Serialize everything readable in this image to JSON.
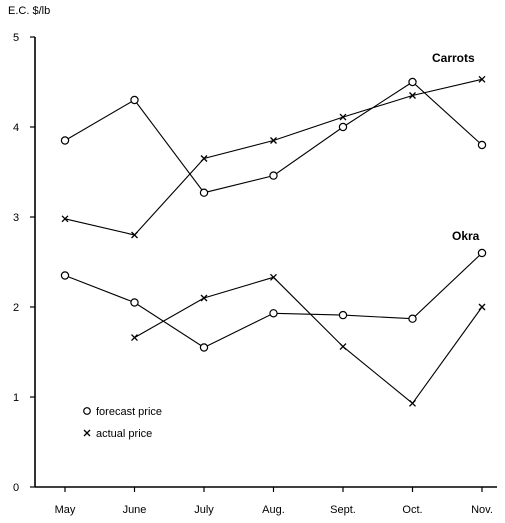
{
  "chart_data": {
    "type": "line",
    "ylabel": "E.C. $/lb",
    "categories": [
      "May",
      "June",
      "July",
      "Aug.",
      "Sept.",
      "Oct.",
      "Nov."
    ],
    "ylim": [
      0,
      5
    ],
    "yticks": [
      "0",
      "1",
      "2",
      "3",
      "4",
      "5"
    ],
    "grid": false,
    "legend_position": "bottom-left",
    "legend": {
      "forecast": "forecast price",
      "actual": "actual price"
    },
    "groups": [
      {
        "label": "Carrots",
        "forecast": [
          3.85,
          4.3,
          3.27,
          3.46,
          4.0,
          4.5,
          3.8
        ],
        "actual": [
          2.98,
          2.8,
          3.65,
          3.85,
          4.11,
          4.35,
          4.53
        ]
      },
      {
        "label": "Okra",
        "forecast": [
          2.35,
          2.05,
          1.55,
          1.93,
          1.91,
          1.87,
          2.6
        ],
        "actual": [
          null,
          1.66,
          2.1,
          2.33,
          1.56,
          0.93,
          2.0
        ]
      }
    ]
  }
}
